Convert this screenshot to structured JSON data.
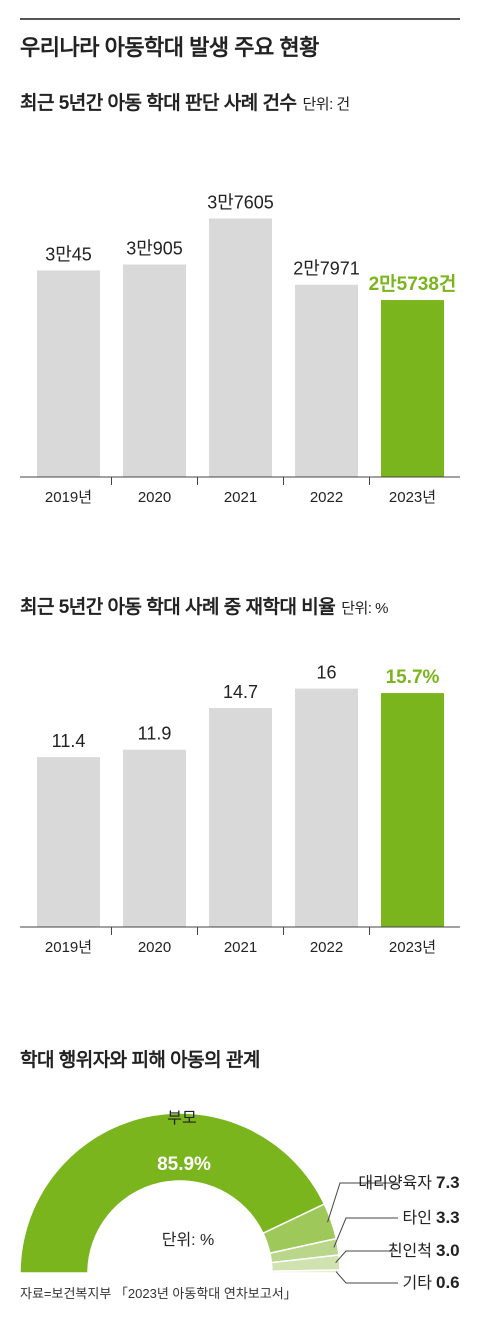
{
  "title": "우리나라 아동학대 발생 주요 현황",
  "colors": {
    "highlight": "#7ab51d",
    "bar": "#d9d9d9",
    "pie_light1": "#9fc85a",
    "pie_light2": "#b9d68a",
    "pie_light3": "#cfe2b0",
    "pie_light4": "#e2eed2"
  },
  "chart_data": [
    {
      "type": "bar",
      "title": "최근 5년간 아동 학대 판단 사례 건수",
      "unit": "단위: 건",
      "categories": [
        "2019년",
        "2020",
        "2021",
        "2022",
        "2023년"
      ],
      "values": [
        30045,
        30905,
        37605,
        27971,
        25738
      ],
      "labels": [
        "3만45",
        "3만905",
        "3만7605",
        "2만7971",
        "2만5738건"
      ],
      "highlight_index": 4,
      "ylim": [
        0,
        40000
      ]
    },
    {
      "type": "bar",
      "title": "최근 5년간 아동 학대 사례 중 재학대 비율",
      "unit": "단위: %",
      "categories": [
        "2019년",
        "2020",
        "2021",
        "2022",
        "2023년"
      ],
      "values": [
        11.4,
        11.9,
        14.7,
        16,
        15.7
      ],
      "labels": [
        "11.4",
        "11.9",
        "14.7",
        "16",
        "15.7%"
      ],
      "highlight_index": 4,
      "ylim": [
        0,
        20
      ]
    },
    {
      "type": "pie",
      "title": "학대 행위자와 피해 아동의 관계",
      "unit": "단위: %",
      "slices": [
        {
          "name": "부모",
          "value": 85.9,
          "label": "85.9%"
        },
        {
          "name": "대리양육자",
          "value": 7.3,
          "label": "7.3"
        },
        {
          "name": "타인",
          "value": 3.3,
          "label": "3.3"
        },
        {
          "name": "친인척",
          "value": 3.0,
          "label": "3.0"
        },
        {
          "name": "기타",
          "value": 0.6,
          "label": "0.6"
        }
      ]
    }
  ],
  "source": "자료=보건복지부 「2023년 아동학대 연차보고서」"
}
